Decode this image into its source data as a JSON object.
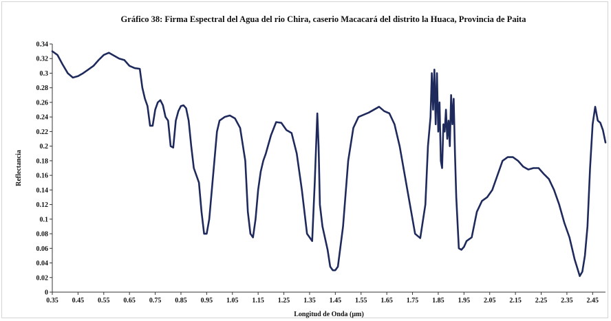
{
  "chart_data": {
    "type": "line",
    "title": "Gráfico 38: Firma Espectral del Agua del rio Chira, caserio Macacará del distrito la Huaca, Provincia de Paita",
    "xlabel": "Longitud de Onda (µm)",
    "ylabel": "Reflectancia",
    "xlim": [
      0.35,
      2.5
    ],
    "ylim": [
      0,
      0.34
    ],
    "x_ticks": [
      "0.35",
      "0.45",
      "0.55",
      "0.65",
      "0.75",
      "0.85",
      "0.95",
      "1.05",
      "1.15",
      "1.25",
      "1.35",
      "1.45",
      "1.55",
      "1.65",
      "1.75",
      "1.85",
      "1.95",
      "2.05",
      "2.15",
      "2.25",
      "2.35",
      "2.45"
    ],
    "y_ticks": [
      "0",
      "0.02",
      "0.04",
      "0.06",
      "0.08",
      "0.1",
      "0.12",
      "0.14",
      "0.16",
      "0.18",
      "0.2",
      "0.22",
      "0.24",
      "0.26",
      "0.28",
      "0.3",
      "0.32",
      "0.34"
    ],
    "grid": false,
    "line_color": "#1f2a5c",
    "series": [
      {
        "x": [
          0.35,
          0.37,
          0.39,
          0.41,
          0.43,
          0.45,
          0.47,
          0.49,
          0.51,
          0.53,
          0.55,
          0.57,
          0.59,
          0.61,
          0.63,
          0.65,
          0.67,
          0.69,
          0.7,
          0.71,
          0.72,
          0.73,
          0.74,
          0.75,
          0.76,
          0.77,
          0.78,
          0.79,
          0.8,
          0.81,
          0.82,
          0.83,
          0.84,
          0.85,
          0.86,
          0.87,
          0.88,
          0.89,
          0.9,
          0.91,
          0.92,
          0.93,
          0.94,
          0.95,
          0.96,
          0.97,
          0.98,
          0.99,
          1.0,
          1.02,
          1.04,
          1.06,
          1.08,
          1.1,
          1.11,
          1.12,
          1.13,
          1.14,
          1.15,
          1.16,
          1.17,
          1.18,
          1.2,
          1.22,
          1.24,
          1.26,
          1.28,
          1.3,
          1.32,
          1.34,
          1.36,
          1.37,
          1.38,
          1.385,
          1.39,
          1.4,
          1.42,
          1.43,
          1.44,
          1.45,
          1.46,
          1.48,
          1.5,
          1.52,
          1.54,
          1.56,
          1.58,
          1.6,
          1.62,
          1.64,
          1.66,
          1.68,
          1.7,
          1.72,
          1.74,
          1.76,
          1.78,
          1.8,
          1.81,
          1.82,
          1.825,
          1.83,
          1.835,
          1.84,
          1.845,
          1.85,
          1.855,
          1.86,
          1.865,
          1.87,
          1.875,
          1.88,
          1.885,
          1.89,
          1.895,
          1.9,
          1.905,
          1.91,
          1.915,
          1.92,
          1.93,
          1.94,
          1.95,
          1.96,
          1.98,
          2.0,
          2.02,
          2.04,
          2.06,
          2.08,
          2.1,
          2.12,
          2.14,
          2.16,
          2.18,
          2.2,
          2.22,
          2.24,
          2.26,
          2.28,
          2.3,
          2.32,
          2.34,
          2.36,
          2.38,
          2.4,
          2.41,
          2.42,
          2.43,
          2.44,
          2.45,
          2.46,
          2.47,
          2.48,
          2.49,
          2.5
        ],
        "y": [
          0.33,
          0.325,
          0.312,
          0.3,
          0.294,
          0.296,
          0.3,
          0.305,
          0.31,
          0.318,
          0.325,
          0.328,
          0.324,
          0.32,
          0.318,
          0.31,
          0.307,
          0.306,
          0.28,
          0.265,
          0.255,
          0.228,
          0.228,
          0.25,
          0.26,
          0.263,
          0.256,
          0.24,
          0.235,
          0.2,
          0.198,
          0.235,
          0.248,
          0.255,
          0.256,
          0.252,
          0.235,
          0.2,
          0.17,
          0.16,
          0.15,
          0.11,
          0.08,
          0.08,
          0.1,
          0.14,
          0.18,
          0.22,
          0.235,
          0.24,
          0.242,
          0.238,
          0.225,
          0.18,
          0.11,
          0.08,
          0.075,
          0.1,
          0.14,
          0.165,
          0.18,
          0.19,
          0.215,
          0.233,
          0.232,
          0.222,
          0.218,
          0.19,
          0.14,
          0.08,
          0.07,
          0.15,
          0.245,
          0.2,
          0.12,
          0.09,
          0.058,
          0.035,
          0.03,
          0.03,
          0.035,
          0.09,
          0.18,
          0.225,
          0.24,
          0.243,
          0.246,
          0.25,
          0.254,
          0.248,
          0.245,
          0.23,
          0.2,
          0.16,
          0.12,
          0.08,
          0.074,
          0.12,
          0.2,
          0.24,
          0.3,
          0.25,
          0.305,
          0.23,
          0.3,
          0.22,
          0.26,
          0.18,
          0.17,
          0.23,
          0.22,
          0.25,
          0.21,
          0.235,
          0.2,
          0.27,
          0.23,
          0.265,
          0.19,
          0.13,
          0.06,
          0.058,
          0.062,
          0.07,
          0.075,
          0.11,
          0.125,
          0.13,
          0.14,
          0.16,
          0.18,
          0.185,
          0.185,
          0.18,
          0.172,
          0.168,
          0.17,
          0.17,
          0.162,
          0.155,
          0.14,
          0.12,
          0.095,
          0.075,
          0.045,
          0.022,
          0.028,
          0.05,
          0.09,
          0.17,
          0.23,
          0.254,
          0.235,
          0.232,
          0.222,
          0.205
        ]
      }
    ]
  }
}
